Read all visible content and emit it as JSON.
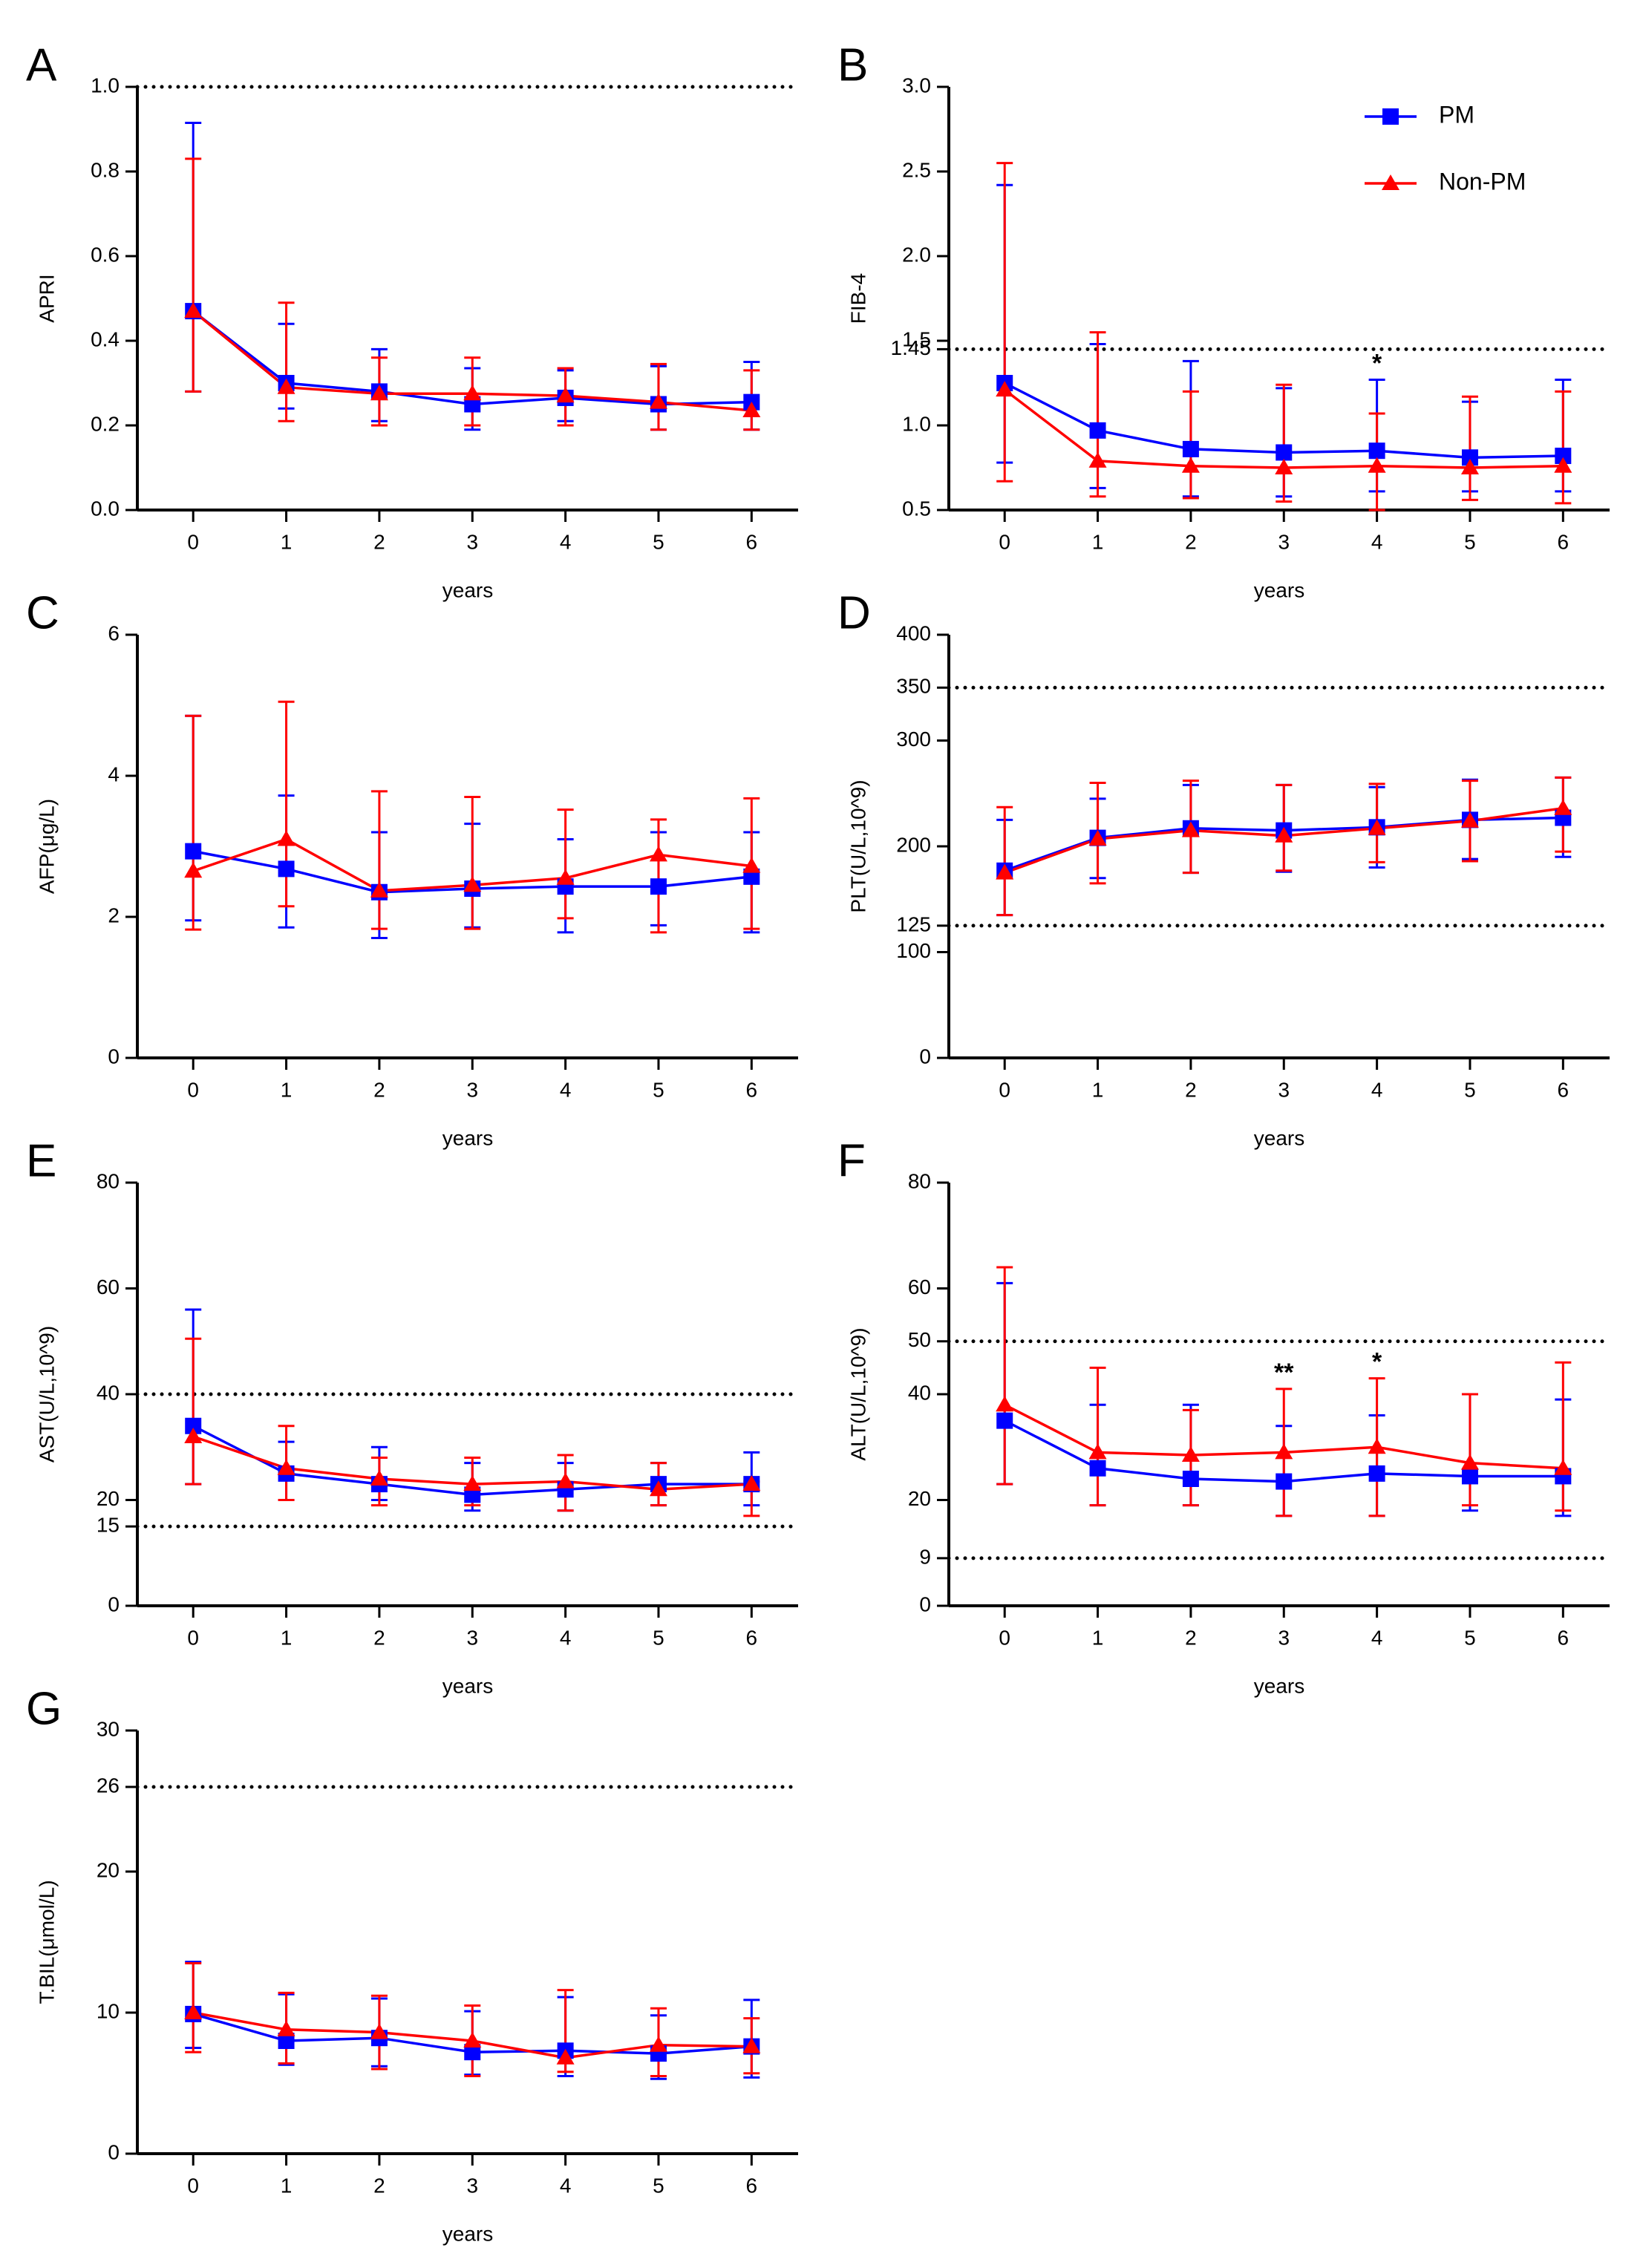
{
  "chart_data": [
    {
      "type": "line",
      "panel_label": "A",
      "ylabel": "APRI",
      "xlabel": "years",
      "x": [
        0,
        1,
        2,
        3,
        4,
        5,
        6
      ],
      "xlim": [
        -0.6,
        6.5
      ],
      "ylim": [
        0,
        1.0
      ],
      "yticks": [
        {
          "value": 0,
          "label": "0.0"
        },
        0.2,
        0.4,
        0.6,
        0.8,
        {
          "value": 1,
          "label": "1.0"
        }
      ],
      "reference_lines": [
        1.0
      ],
      "annotations": [],
      "series": [
        {
          "name": "PM",
          "color": "#0000ff",
          "marker": "square",
          "values": [
            0.47,
            0.3,
            0.28,
            0.25,
            0.265,
            0.25,
            0.255
          ],
          "upper": [
            0.915,
            0.44,
            0.38,
            0.335,
            0.33,
            0.34,
            0.35
          ],
          "lower": [
            0.28,
            0.24,
            0.21,
            0.19,
            0.21,
            0.19,
            0.19
          ]
        },
        {
          "name": "Non-PM",
          "color": "#ff0000",
          "marker": "triangle",
          "values": [
            0.47,
            0.29,
            0.275,
            0.275,
            0.27,
            0.255,
            0.235
          ],
          "upper": [
            0.83,
            0.49,
            0.36,
            0.36,
            0.335,
            0.345,
            0.33
          ],
          "lower": [
            0.28,
            0.21,
            0.2,
            0.2,
            0.2,
            0.19,
            0.19
          ]
        }
      ]
    },
    {
      "type": "line",
      "panel_label": "B",
      "ylabel": "FIB-4",
      "xlabel": "years",
      "x": [
        0,
        1,
        2,
        3,
        4,
        5,
        6
      ],
      "xlim": [
        -0.6,
        6.5
      ],
      "ylim": [
        0.5,
        3.0
      ],
      "yticks": [
        0.5,
        {
          "value": 1,
          "label": "1.0"
        },
        1.45,
        1.5,
        {
          "value": 2,
          "label": "2.0"
        },
        2.5,
        {
          "value": 3,
          "label": "3.0"
        }
      ],
      "reference_lines": [
        1.45
      ],
      "annotations": [
        {
          "text": "*",
          "x": 4
        }
      ],
      "legend": "upper right",
      "series": [
        {
          "name": "PM",
          "color": "#0000ff",
          "marker": "square",
          "values": [
            1.25,
            0.97,
            0.86,
            0.84,
            0.85,
            0.81,
            0.82
          ],
          "upper": [
            2.42,
            1.48,
            1.38,
            1.22,
            1.27,
            1.14,
            1.27
          ],
          "lower": [
            0.78,
            0.63,
            0.58,
            0.58,
            0.61,
            0.61,
            0.61
          ]
        },
        {
          "name": "Non-PM",
          "color": "#ff0000",
          "marker": "triangle",
          "values": [
            1.21,
            0.79,
            0.76,
            0.75,
            0.76,
            0.75,
            0.76
          ],
          "upper": [
            2.55,
            1.55,
            1.2,
            1.24,
            1.07,
            1.17,
            1.2
          ],
          "lower": [
            0.67,
            0.58,
            0.57,
            0.55,
            0.5,
            0.56,
            0.54
          ]
        }
      ]
    },
    {
      "type": "line",
      "panel_label": "C",
      "ylabel": "AFP(μg/L)",
      "xlabel": "years",
      "x": [
        0,
        1,
        2,
        3,
        4,
        5,
        6
      ],
      "xlim": [
        -0.6,
        6.5
      ],
      "ylim": [
        0,
        6
      ],
      "yticks": [
        0,
        2,
        4,
        6
      ],
      "reference_lines": [],
      "annotations": [],
      "series": [
        {
          "name": "PM",
          "color": "#0000ff",
          "marker": "square",
          "values": [
            2.93,
            2.68,
            2.35,
            2.4,
            2.43,
            2.43,
            2.57
          ],
          "upper": [
            4.85,
            3.72,
            3.2,
            3.32,
            3.1,
            3.2,
            3.2
          ],
          "lower": [
            1.95,
            1.85,
            1.7,
            1.85,
            1.78,
            1.88,
            1.78
          ]
        },
        {
          "name": "Non-PM",
          "color": "#ff0000",
          "marker": "triangle",
          "values": [
            2.65,
            3.1,
            2.37,
            2.45,
            2.55,
            2.88,
            2.72
          ],
          "upper": [
            4.85,
            5.05,
            3.78,
            3.7,
            3.52,
            3.38,
            3.68
          ],
          "lower": [
            1.82,
            2.15,
            1.83,
            1.83,
            1.98,
            1.78,
            1.83
          ]
        }
      ]
    },
    {
      "type": "line",
      "panel_label": "D",
      "ylabel": "PLT(U/L,10^9)",
      "xlabel": "years",
      "x": [
        0,
        1,
        2,
        3,
        4,
        5,
        6
      ],
      "xlim": [
        -0.6,
        6.5
      ],
      "ylim": [
        0,
        400
      ],
      "yticks": [
        0,
        100,
        125,
        200,
        300,
        350,
        400
      ],
      "reference_lines": [
        350,
        125
      ],
      "annotations": [],
      "series": [
        {
          "name": "PM",
          "color": "#0000ff",
          "marker": "square",
          "values": [
            177,
            208,
            217,
            215,
            218,
            225,
            227
          ],
          "upper": [
            225,
            245,
            258,
            258,
            256,
            263,
            265
          ],
          "lower": [
            135,
            170,
            175,
            176,
            180,
            188,
            190
          ]
        },
        {
          "name": "Non-PM",
          "color": "#ff0000",
          "marker": "triangle",
          "values": [
            175,
            207,
            215,
            210,
            217,
            224,
            236
          ],
          "upper": [
            237,
            260,
            262,
            258,
            259,
            262,
            265
          ],
          "lower": [
            135,
            165,
            175,
            177,
            185,
            186,
            195
          ]
        }
      ]
    },
    {
      "type": "line",
      "panel_label": "E",
      "ylabel": "AST(U/L,10^9)",
      "xlabel": "years",
      "x": [
        0,
        1,
        2,
        3,
        4,
        5,
        6
      ],
      "xlim": [
        -0.6,
        6.5
      ],
      "ylim": [
        0,
        80
      ],
      "yticks": [
        0,
        15,
        20,
        40,
        60,
        80
      ],
      "reference_lines": [
        40,
        15
      ],
      "annotations": [],
      "series": [
        {
          "name": "PM",
          "color": "#0000ff",
          "marker": "square",
          "values": [
            34,
            25,
            23,
            21,
            22,
            23,
            23
          ],
          "upper": [
            56,
            31,
            30,
            27,
            27,
            27,
            29
          ],
          "lower": [
            23,
            20,
            20,
            18,
            18,
            19,
            19
          ]
        },
        {
          "name": "Non-PM",
          "color": "#ff0000",
          "marker": "triangle",
          "values": [
            32,
            26,
            24,
            23,
            23.5,
            22,
            23
          ],
          "upper": [
            50.5,
            34,
            28,
            28,
            28.5,
            27,
            23.5
          ],
          "lower": [
            23,
            20,
            19,
            19,
            18,
            19,
            17
          ]
        }
      ]
    },
    {
      "type": "line",
      "panel_label": "F",
      "ylabel": "ALT(U/L,10^9)",
      "xlabel": "years",
      "x": [
        0,
        1,
        2,
        3,
        4,
        5,
        6
      ],
      "xlim": [
        -0.6,
        6.5
      ],
      "ylim": [
        0,
        80
      ],
      "yticks": [
        0,
        9,
        20,
        40,
        50,
        60,
        80
      ],
      "reference_lines": [
        50,
        9
      ],
      "annotations": [
        {
          "text": "**",
          "x": 3
        },
        {
          "text": "*",
          "x": 4
        }
      ],
      "series": [
        {
          "name": "PM",
          "color": "#0000ff",
          "marker": "square",
          "values": [
            35,
            26,
            24,
            23.5,
            25,
            24.5,
            24.5
          ],
          "upper": [
            61,
            38,
            38,
            34,
            36,
            40,
            39
          ],
          "lower": [
            23,
            19,
            19,
            17,
            17,
            18,
            17
          ]
        },
        {
          "name": "Non-PM",
          "color": "#ff0000",
          "marker": "triangle",
          "values": [
            38,
            29,
            28.5,
            29,
            30,
            27,
            26
          ],
          "upper": [
            64,
            45,
            37,
            41,
            43,
            40,
            46
          ],
          "lower": [
            23,
            19,
            19,
            17,
            17,
            19,
            18
          ]
        }
      ]
    },
    {
      "type": "line",
      "panel_label": "G",
      "ylabel": "T.BIL(μmol/L)",
      "xlabel": "years",
      "x": [
        0,
        1,
        2,
        3,
        4,
        5,
        6
      ],
      "xlim": [
        -0.6,
        6.5
      ],
      "ylim": [
        0,
        30
      ],
      "yticks": [
        0,
        10,
        20,
        26,
        30
      ],
      "reference_lines": [
        26
      ],
      "annotations": [],
      "series": [
        {
          "name": "PM",
          "color": "#0000ff",
          "marker": "square",
          "values": [
            9.9,
            8.0,
            8.2,
            7.2,
            7.3,
            7.1,
            7.6
          ],
          "upper": [
            13.6,
            11.3,
            11.0,
            10.1,
            11.1,
            9.8,
            10.9
          ],
          "lower": [
            7.5,
            6.3,
            6.2,
            5.6,
            5.5,
            5.3,
            5.4
          ]
        },
        {
          "name": "Non-PM",
          "color": "#ff0000",
          "marker": "triangle",
          "values": [
            10.0,
            8.8,
            8.6,
            8.0,
            6.8,
            7.7,
            7.6
          ],
          "upper": [
            13.5,
            11.4,
            11.2,
            10.5,
            11.6,
            10.3,
            9.6
          ],
          "lower": [
            7.2,
            6.4,
            6.0,
            5.5,
            5.8,
            5.5,
            5.7
          ]
        }
      ]
    }
  ]
}
